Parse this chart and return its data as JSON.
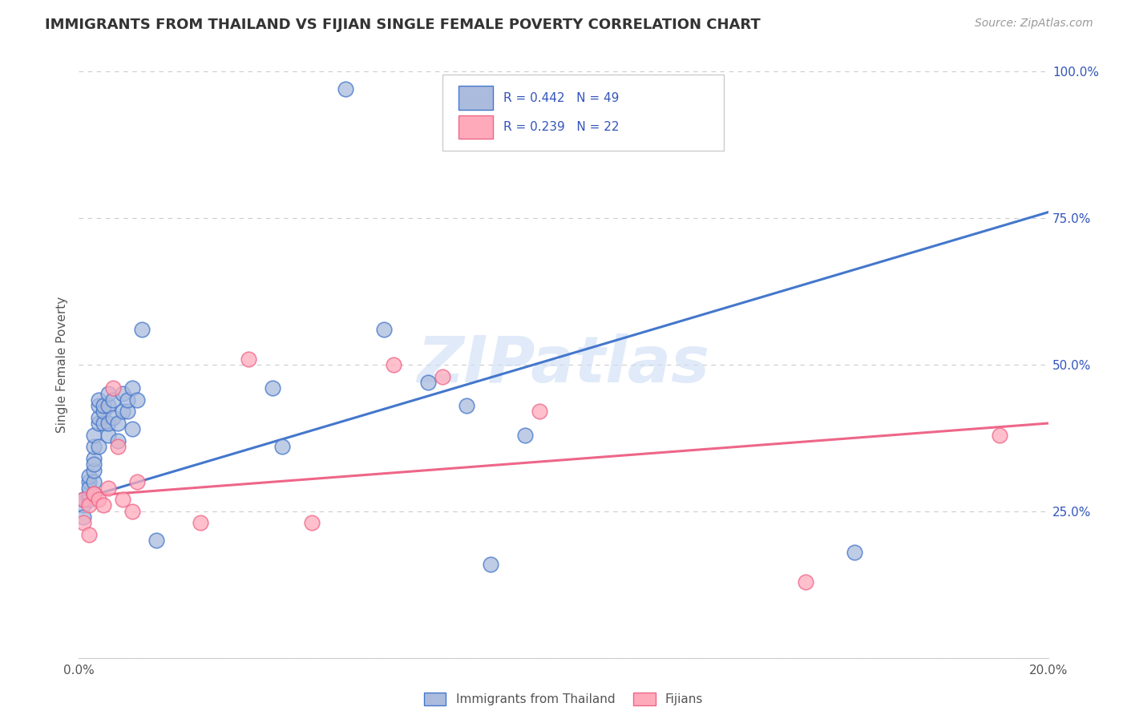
{
  "title": "IMMIGRANTS FROM THAILAND VS FIJIAN SINGLE FEMALE POVERTY CORRELATION CHART",
  "source": "Source: ZipAtlas.com",
  "ylabel": "Single Female Poverty",
  "legend_label_1": "Immigrants from Thailand",
  "legend_label_2": "Fijians",
  "xlim": [
    0.0,
    0.2
  ],
  "ylim": [
    0.0,
    1.0
  ],
  "color_blue": "#AABBDD",
  "color_blue_line": "#4477CC",
  "color_pink": "#FFAABB",
  "color_pink_line": "#EE6688",
  "color_text_blue": "#3355BB",
  "color_text_dark": "#333333",
  "color_source": "#999999",
  "background": "#FFFFFF",
  "grid_color": "#CCCCCC",
  "thailand_x": [
    0.001,
    0.001,
    0.001,
    0.002,
    0.002,
    0.002,
    0.002,
    0.002,
    0.003,
    0.003,
    0.003,
    0.003,
    0.003,
    0.003,
    0.003,
    0.004,
    0.004,
    0.004,
    0.004,
    0.004,
    0.005,
    0.005,
    0.005,
    0.006,
    0.006,
    0.006,
    0.006,
    0.007,
    0.007,
    0.008,
    0.008,
    0.009,
    0.009,
    0.01,
    0.01,
    0.011,
    0.011,
    0.012,
    0.013,
    0.016,
    0.04,
    0.042,
    0.055,
    0.063,
    0.072,
    0.08,
    0.085,
    0.092,
    0.16
  ],
  "thailand_y": [
    0.26,
    0.24,
    0.27,
    0.27,
    0.28,
    0.3,
    0.29,
    0.31,
    0.28,
    0.3,
    0.32,
    0.34,
    0.33,
    0.36,
    0.38,
    0.36,
    0.4,
    0.41,
    0.43,
    0.44,
    0.4,
    0.42,
    0.43,
    0.38,
    0.4,
    0.43,
    0.45,
    0.41,
    0.44,
    0.37,
    0.4,
    0.42,
    0.45,
    0.42,
    0.44,
    0.39,
    0.46,
    0.44,
    0.56,
    0.2,
    0.46,
    0.36,
    0.97,
    0.56,
    0.47,
    0.43,
    0.16,
    0.38,
    0.18
  ],
  "fijian_x": [
    0.001,
    0.001,
    0.002,
    0.002,
    0.003,
    0.003,
    0.004,
    0.005,
    0.006,
    0.007,
    0.008,
    0.009,
    0.011,
    0.012,
    0.025,
    0.035,
    0.048,
    0.065,
    0.075,
    0.095,
    0.15,
    0.19
  ],
  "fijian_y": [
    0.27,
    0.23,
    0.26,
    0.21,
    0.28,
    0.28,
    0.27,
    0.26,
    0.29,
    0.46,
    0.36,
    0.27,
    0.25,
    0.3,
    0.23,
    0.51,
    0.23,
    0.5,
    0.48,
    0.42,
    0.13,
    0.38
  ],
  "blue_line_x": [
    0.0,
    0.2
  ],
  "blue_line_y": [
    0.27,
    0.76
  ],
  "pink_line_x": [
    0.0,
    0.2
  ],
  "pink_line_y": [
    0.275,
    0.4
  ]
}
